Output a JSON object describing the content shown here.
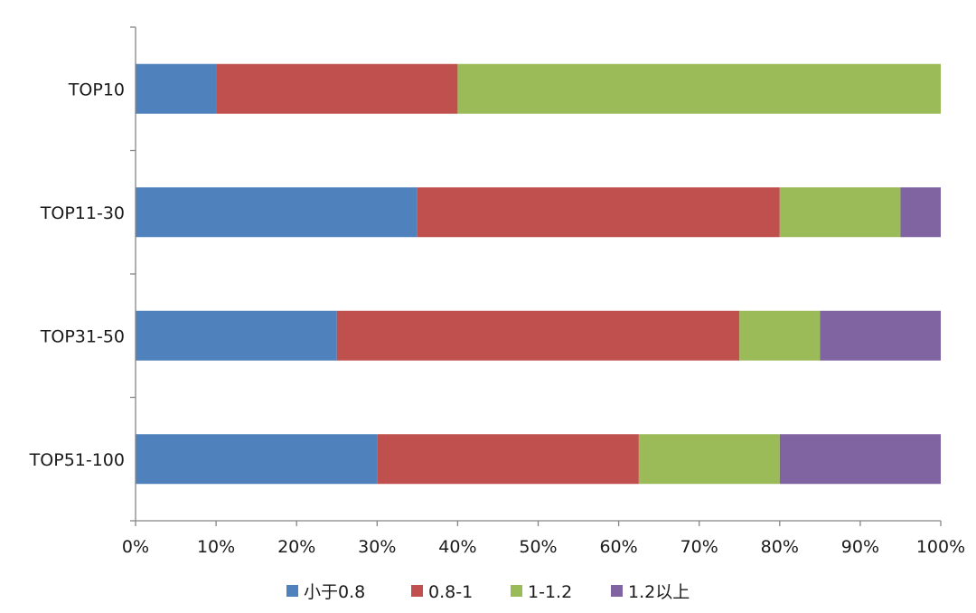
{
  "chart_data": {
    "type": "bar",
    "orientation": "horizontal",
    "stacked": "percent",
    "title": "",
    "xlabel": "",
    "ylabel": "",
    "xlim": [
      0,
      100
    ],
    "x_tick_labels": [
      "0%",
      "10%",
      "20%",
      "30%",
      "40%",
      "50%",
      "60%",
      "70%",
      "80%",
      "90%",
      "100%"
    ],
    "categories": [
      "TOP10",
      "TOP11-30",
      "TOP31-50",
      "TOP51-100"
    ],
    "series": [
      {
        "name": "小于0.8",
        "color": "#4f81bd",
        "values": [
          10,
          35,
          25,
          30
        ]
      },
      {
        "name": "0.8-1",
        "color": "#c0504d",
        "values": [
          30,
          45,
          50,
          32.5
        ]
      },
      {
        "name": "1-1.2",
        "color": "#9bbb59",
        "values": [
          60,
          15,
          10,
          17.5
        ]
      },
      {
        "name": "1.2以上",
        "color": "#8064a2",
        "values": [
          0,
          5,
          15,
          20
        ]
      }
    ],
    "grid": false,
    "legend": "bottom"
  }
}
